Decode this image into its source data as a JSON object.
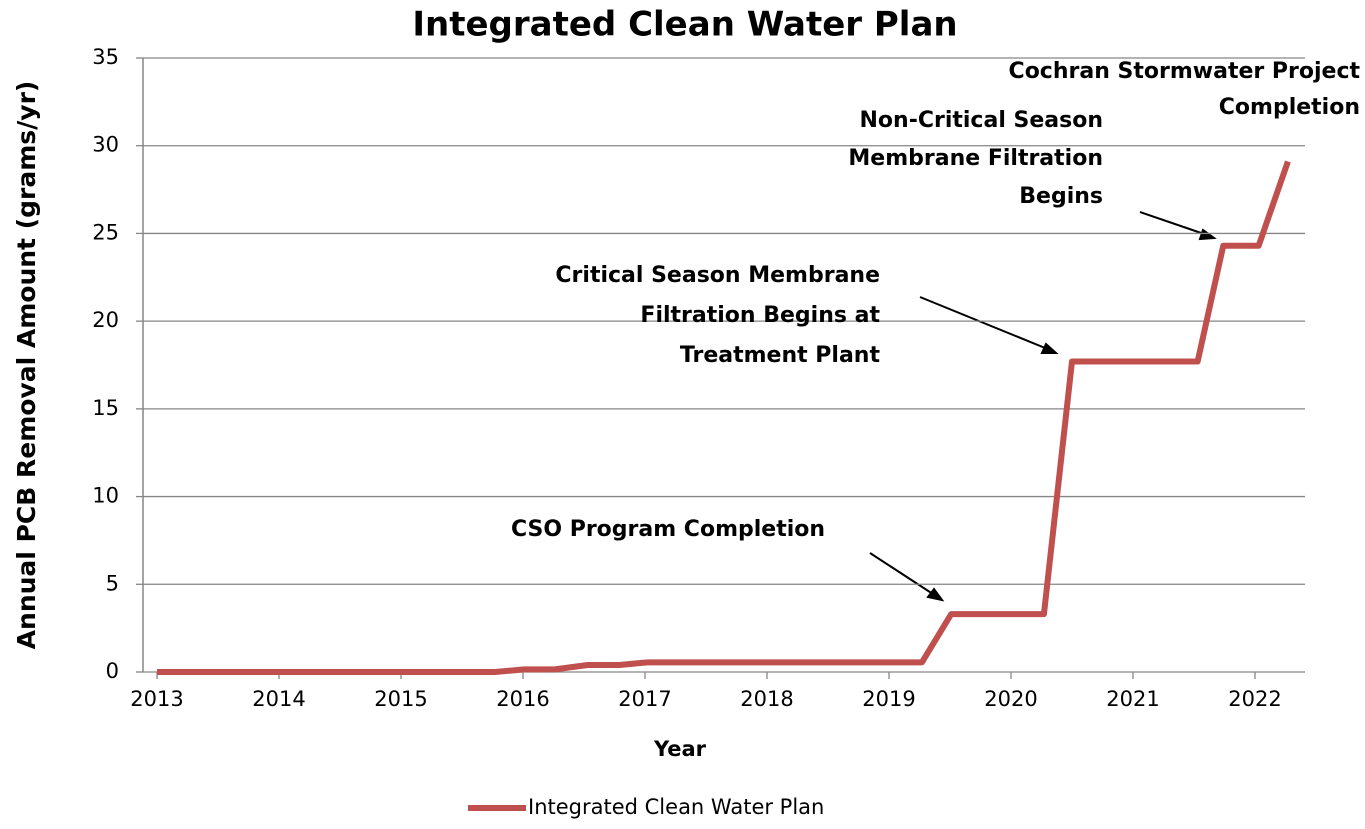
{
  "chart_data": {
    "type": "line",
    "title": "Integrated Clean Water Plan",
    "x_label": "Year",
    "y_label": "Annual PCB Removal Amount (grams/yr)",
    "xlim": [
      2012.885,
      2022.41
    ],
    "xticks": [
      2013,
      2014,
      2015,
      2016,
      2017,
      2018,
      2019,
      2020,
      2021,
      2022
    ],
    "ylim": [
      0,
      35
    ],
    "yticks": [
      0,
      5,
      10,
      15,
      20,
      25,
      30,
      35
    ],
    "grid": true,
    "legend": "bottom",
    "series": [
      {
        "name": "Integrated Clean Water Plan",
        "color": "#c0504d",
        "x": [
          2013,
          2015.77,
          2016.01,
          2016.26,
          2016.53,
          2016.79,
          2017.02,
          2019.27,
          2019.51,
          2020.27,
          2020.5,
          2021.53,
          2021.74,
          2022.03,
          2022.27
        ],
        "values": [
          0,
          0,
          0.15,
          0.15,
          0.4,
          0.4,
          0.55,
          0.55,
          3.3,
          3.3,
          17.7,
          17.7,
          24.3,
          24.3,
          29.1
        ]
      }
    ],
    "annotations": [
      [
        "CSO Program Completion"
      ],
      [
        "Critical Season Membrane",
        "Filtration Begins at",
        "Treatment Plant"
      ],
      [
        "Non-Critical Season",
        "Membrane Filtration",
        "Begins"
      ],
      [
        "Cochran Stormwater Project",
        "Completion"
      ]
    ]
  }
}
